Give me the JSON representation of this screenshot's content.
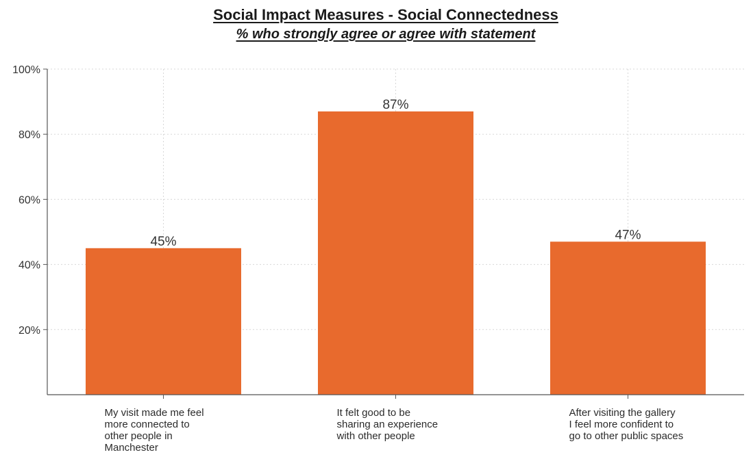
{
  "chart_data": {
    "type": "bar",
    "title": "Social Impact Measures - Social Connectedness",
    "subtitle": "% who strongly agree or agree with statement",
    "xlabel": "",
    "ylabel": "",
    "categories": [
      [
        "My visit made me feel",
        "more connected to",
        "other people in",
        "Manchester"
      ],
      [
        "It felt good to be",
        "sharing an experience",
        "with other people"
      ],
      [
        "After visiting the gallery",
        "I feel more confident to",
        "go to other public spaces"
      ]
    ],
    "values": [
      45,
      87,
      47
    ],
    "data_labels": [
      "45%",
      "87%",
      "47%"
    ],
    "ylim": [
      0,
      100
    ],
    "yticks": [
      20,
      40,
      60,
      80,
      100
    ],
    "ytick_labels": [
      "20%",
      "40%",
      "60%",
      "80%",
      "100%"
    ],
    "grid": true,
    "bar_color": "#E86A2D",
    "grid_color": "#d7d7d7",
    "axis_color": "#555555"
  }
}
